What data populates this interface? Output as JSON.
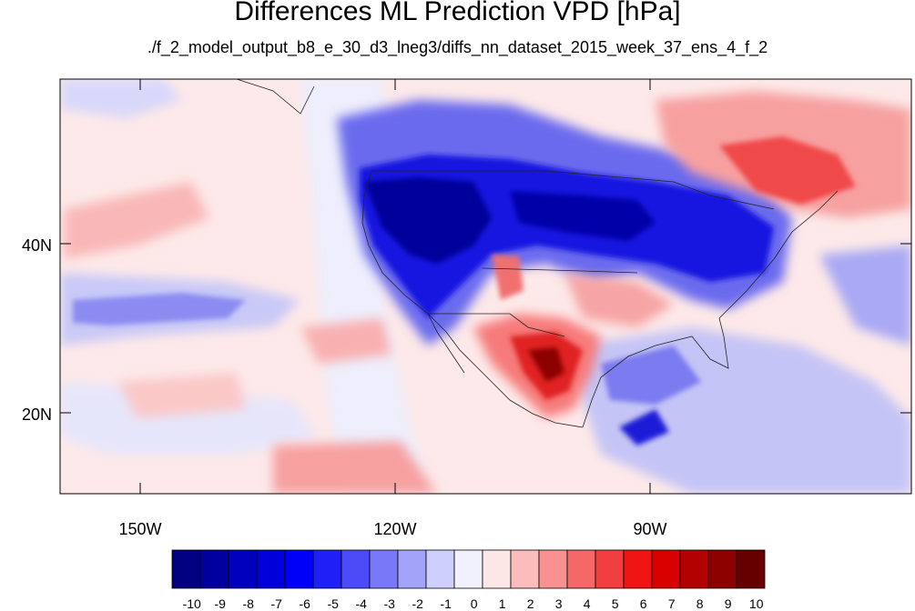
{
  "title": "Differences ML Prediction VPD [hPa]",
  "subtitle": "./f_2_model_output_b8_e_30_d3_lneg3/diffs_nn_dataset_2015_week_37_ens_4_f_2",
  "map": {
    "lat_labels": [
      "40N",
      "20N"
    ],
    "lon_labels": [
      "150W",
      "120W",
      "90W"
    ]
  },
  "colorbar": {
    "labels": [
      "-10",
      "-9",
      "-8",
      "-7",
      "-6",
      "-5",
      "-4",
      "-3",
      "-2",
      "-1",
      "0",
      "1",
      "2",
      "3",
      "4",
      "5",
      "6",
      "7",
      "8",
      "9",
      "10"
    ],
    "colors": [
      "#000080",
      "#00009e",
      "#0000bd",
      "#0000db",
      "#0000f9",
      "#1f1ff7",
      "#4b4bf7",
      "#7878f9",
      "#a3a3f9",
      "#cfcffb",
      "#f1f1fd",
      "#fde6e6",
      "#fbbcbc",
      "#f89292",
      "#f56868",
      "#f23e3e",
      "#f01414",
      "#d90000",
      "#b30000",
      "#8c0000",
      "#660000"
    ]
  }
}
